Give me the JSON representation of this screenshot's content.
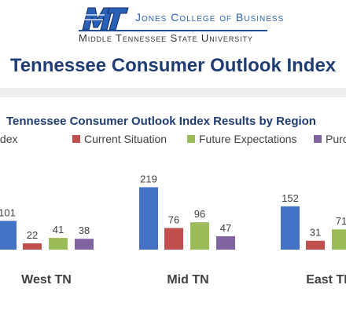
{
  "header": {
    "college_name": "Jones College of Business",
    "university_name": "Middle Tennessee State University",
    "logo_icon": "mt-logo-icon"
  },
  "page_title": "Tennessee Consumer Outlook Index",
  "chart_data": {
    "type": "bar",
    "title": "Tennessee Consumer Outlook Index Results by Region",
    "categories": [
      "West TN",
      "Mid TN",
      "East TN"
    ],
    "series": [
      {
        "name": "Overall Index",
        "values": [
          101,
          219,
          152
        ],
        "color": "#4472c4"
      },
      {
        "name": "Current Situation",
        "values": [
          22,
          76,
          31
        ],
        "color": "#c0504d"
      },
      {
        "name": "Future Expectations",
        "values": [
          41,
          96,
          71
        ],
        "color": "#9bbb59"
      },
      {
        "name": "Purchasing Plans",
        "values": [
          38,
          47,
          null
        ],
        "color": "#8064a2"
      }
    ],
    "ylim": [
      0,
      240
    ],
    "grid": false,
    "legend_position": "top"
  }
}
